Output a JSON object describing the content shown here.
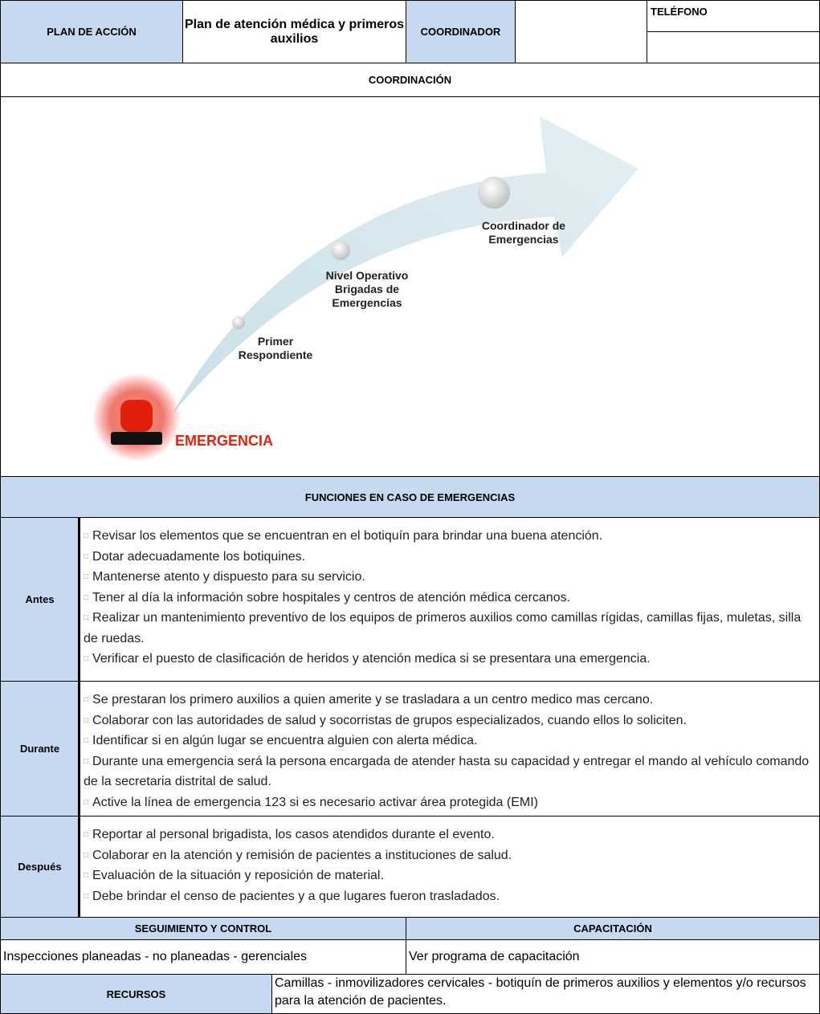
{
  "header": {
    "plan_label": "PLAN DE ACCIÓN",
    "title": "Plan de atención médica y primeros auxilios",
    "coordinator_label": "COORDINADOR",
    "phone_label": "TELÉFONO"
  },
  "coordination": "COORDINACIÓN",
  "diagram": {
    "steps": [
      [
        "Primer",
        "Respondiente"
      ],
      [
        "Nivel Operativo",
        "Brigadas de",
        "Emergencias"
      ],
      [
        "Coordinador de",
        "Emergencias"
      ]
    ],
    "emergency": "EMERGENCIA"
  },
  "functions": {
    "title": "FUNCIONES EN CASO DE EMERGENCIAS",
    "sections": [
      {
        "label": "Antes",
        "items": [
          "Revisar los elementos que se encuentran en el botiquín para brindar una buena atención.",
          "Dotar adecuadamente los botiquines.",
          "Mantenerse atento y dispuesto para su servicio.",
          "Tener al día la información sobre hospitales y centros de atención médica cercanos.",
          "Realizar un mantenimiento preventivo de los equipos de primeros auxilios como camillas rígidas, camillas fijas, muletas, silla de ruedas.",
          "Verificar el puesto de clasificación de heridos y atención medica si se presentara una emergencia."
        ]
      },
      {
        "label": "Durante",
        "items": [
          "Se prestaran los primero auxilios a quien amerite y se trasladara a un centro medico mas cercano.",
          "Colaborar con las autoridades de salud y socorristas de grupos especializados, cuando ellos lo soliciten.",
          "Identificar si en algún lugar se encuentra alguien con alerta médica.",
          "Durante una emergencia será la persona encargada de atender hasta su capacidad y entregar el mando al vehículo comando de la secretaria distrital de salud.",
          "Active la línea de emergencia 123 si es necesario activar área protegida (EMI)"
        ]
      },
      {
        "label": "Después",
        "items": [
          "Reportar al personal brigadista, los casos atendidos durante el evento.",
          "Colaborar en la atención y remisión de pacientes a instituciones de salud.",
          "Evaluación de la situación y reposición de material.",
          "Debe brindar el censo de pacientes y a que lugares fueron trasladados."
        ]
      }
    ]
  },
  "followup": {
    "label": "SEGUIMIENTO Y CONTROL",
    "text": "Inspecciones planeadas - no planeadas - gerenciales"
  },
  "training": {
    "label": "CAPACITACIÓN",
    "text": "Ver programa de capacitación"
  },
  "resources": {
    "label": "RECURSOS",
    "text": "Camillas - inmovilizadores cervicales - botiquín de primeros auxilios  y elementos y/o recursos para la atención de pacientes."
  }
}
